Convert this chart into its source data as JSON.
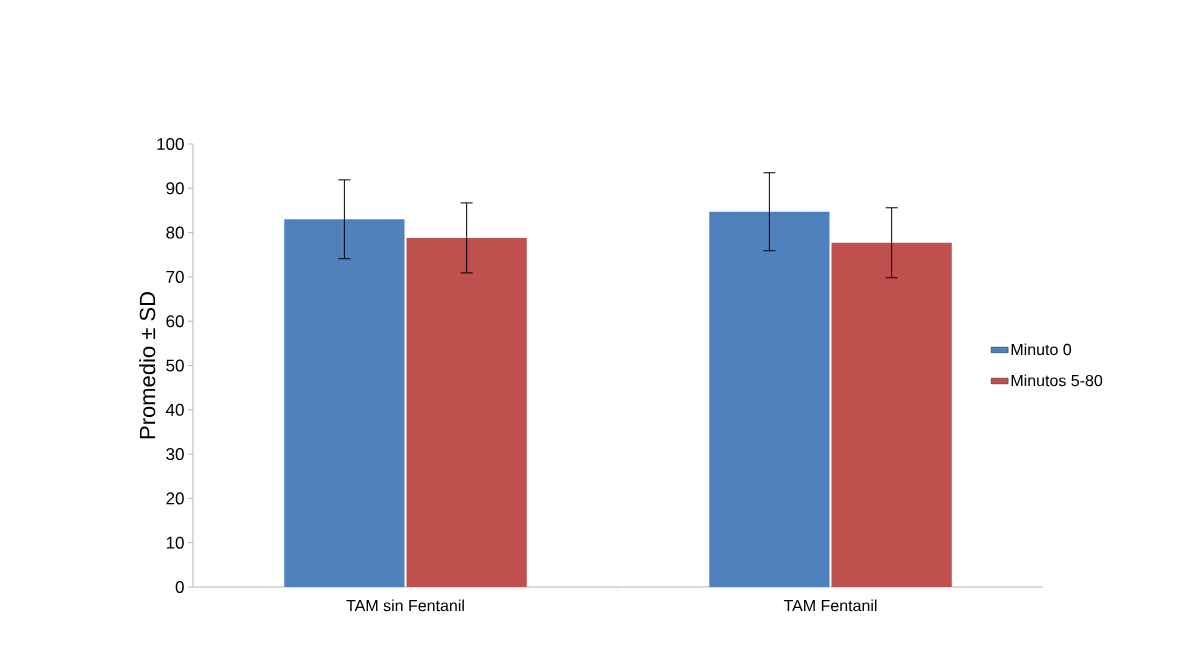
{
  "chart_data": {
    "type": "bar",
    "ylabel": "Promedio ± SD",
    "categories": [
      "TAM sin Fentanil",
      "TAM Fentanil"
    ],
    "series": [
      {
        "name": "Minuto 0",
        "color": "#4f81bd",
        "values": [
          83.0,
          84.7
        ],
        "errors": [
          8.9,
          8.8
        ]
      },
      {
        "name": "Minutos 5-80",
        "color": "#c0504d",
        "values": [
          78.8,
          77.7
        ],
        "errors": [
          7.9,
          7.9
        ]
      }
    ],
    "ylim": [
      0,
      100
    ],
    "yticks": [
      0,
      10,
      20,
      30,
      40,
      50,
      60,
      70,
      80,
      90,
      100
    ],
    "legend": "right"
  }
}
